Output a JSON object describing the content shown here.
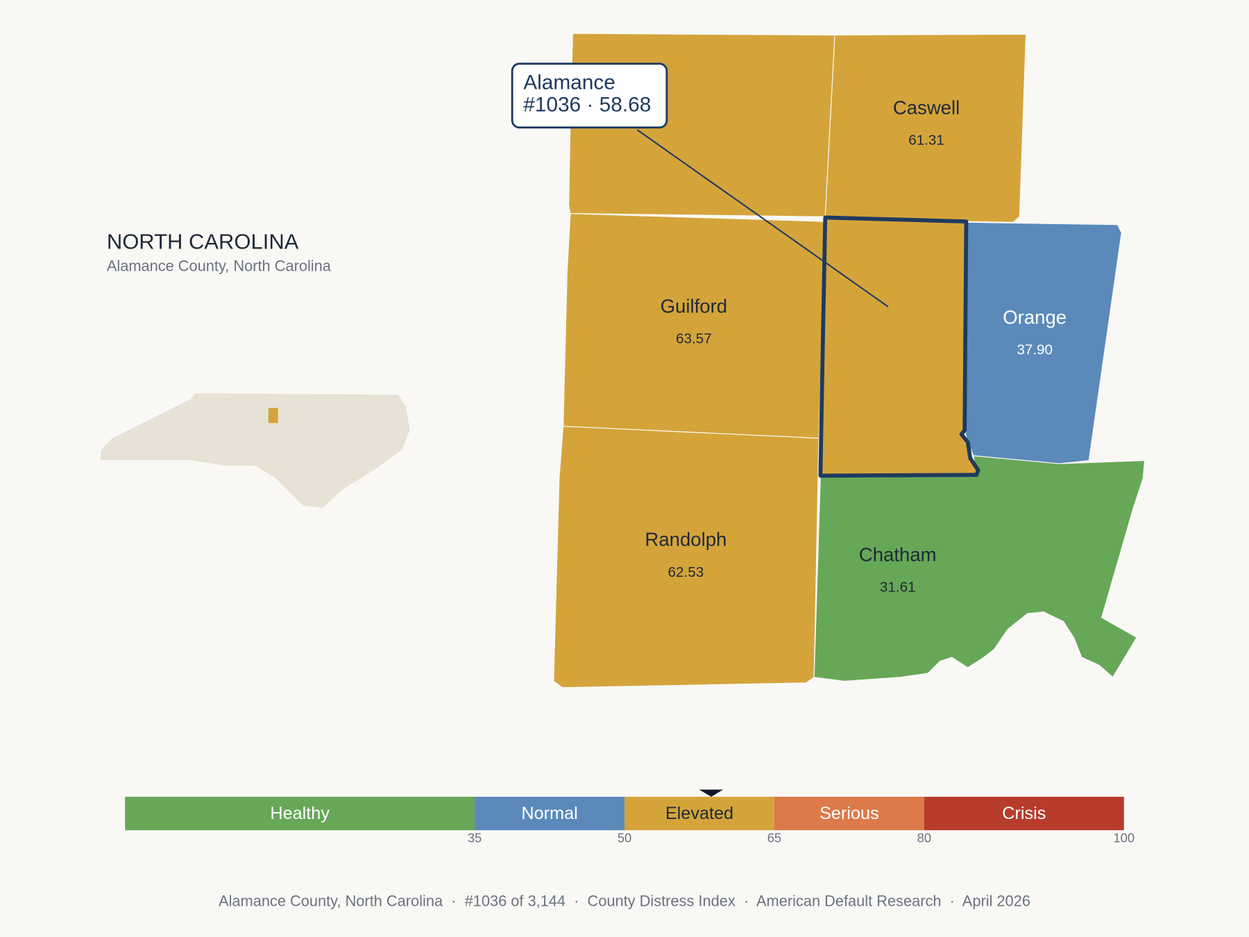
{
  "title": "NORTH CAROLINA",
  "subtitle": "Alamance County, North Carolina",
  "callout": {
    "name": "Alamance",
    "detail": "#1036 · 58.68"
  },
  "selected_score": 58.68,
  "counties": [
    {
      "name": "Caswell",
      "value": 61.31,
      "value_label": "61.31"
    },
    {
      "name": "Guilford",
      "value": 63.57,
      "value_label": "63.57"
    },
    {
      "name": "Orange",
      "value": 37.9,
      "value_label": "37.90"
    },
    {
      "name": "Randolph",
      "value": 62.53,
      "value_label": "62.53"
    },
    {
      "name": "Chatham",
      "value": 31.61,
      "value_label": "31.61"
    }
  ],
  "scale": {
    "lim": [
      0,
      100
    ],
    "ticks": [
      35,
      50,
      65,
      80,
      100
    ],
    "bands": [
      {
        "name": "Healthy",
        "color": "#67a758",
        "text_color": "#ffffff",
        "map_text_color": "#1f2937"
      },
      {
        "name": "Normal",
        "color": "#5b8aba",
        "text_color": "#ffffff",
        "map_text_color": "#ffffff"
      },
      {
        "name": "Elevated",
        "color": "#d4a43b",
        "text_color": "#1f2937",
        "map_text_color": "#1f2937"
      },
      {
        "name": "Serious",
        "color": "#dd7a4a",
        "text_color": "#ffffff",
        "map_text_color": "#1f2937"
      },
      {
        "name": "Crisis",
        "color": "#b83c2c",
        "text_color": "#ffffff",
        "map_text_color": "#ffffff"
      }
    ]
  },
  "footer": "Alamance County, North Carolina  ·  #1036 of 3,144  ·  County Distress Index  ·  American Default Research  ·  April 2026"
}
